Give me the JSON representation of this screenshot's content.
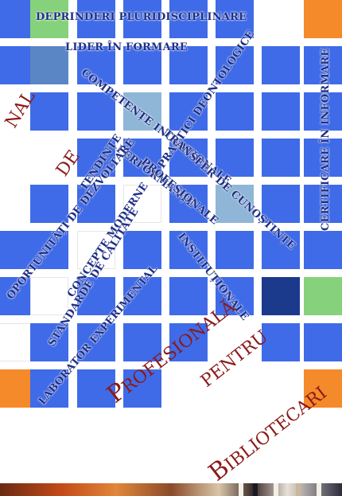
{
  "cover": {
    "words": [
      "DEPRINDERI PLURIDISCIPLINARE",
      "LIDER ÎN FORMARE",
      "COMPETENȚE INOVAȚIONALE",
      "PRACTICI DEONTOLOGICE",
      "TENDINȚE",
      "TRANSFER DE CUNOȘTINȚE",
      "PERFORMANȚE",
      "PROFESIONALE",
      "OPORTUNITĂȚI DE DEZVOLTARE",
      "CONCEPTE MODERNE",
      "INSTITUȚIONALE",
      "STANDARDE DE CALITATE",
      "LABORATOR EXPERIMENTAL",
      "CERTIFICARE ÎN INFORMARE"
    ],
    "title_parts": {
      "cut": "NAL",
      "de": "DE",
      "profesionala": {
        "cap": "P",
        "rest": "ROFESIONALĂ"
      },
      "pentru": "PENTRU",
      "bibliotecari": {
        "cap": "B",
        "rest": "IBLIOTECARI"
      }
    },
    "colors": {
      "tile": "#3f6be8",
      "green": "#86d27c",
      "orange": "#f58a2a",
      "title": "#8b1a1a",
      "words": "#1f2f86"
    }
  }
}
